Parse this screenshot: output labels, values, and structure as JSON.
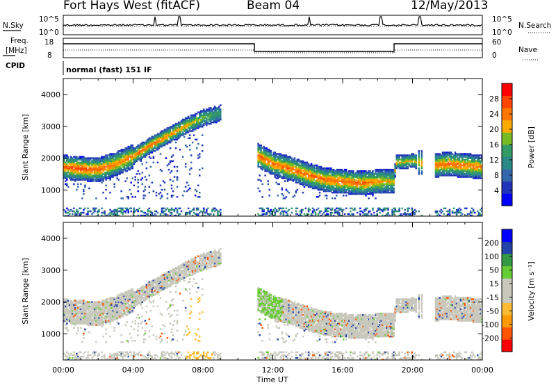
{
  "header": {
    "station": "Fort Hays West (fitACF)",
    "beam": "Beam 04",
    "date": "12/May/2013"
  },
  "strips": {
    "nsky_label": "N.Sky",
    "nsky_ticks": [
      "10^5",
      "10^0"
    ],
    "nsearch_label": "N.Search",
    "nsearch_ticks": [
      "10^5",
      "10^0"
    ],
    "freq_label_1": "Freq.",
    "freq_label_2": "[MHz]",
    "freq_ticks": [
      "18",
      "8"
    ],
    "nave_label": "Nave",
    "nave_ticks": [
      "60",
      "0"
    ],
    "cpid_label": "CPID",
    "cpid_text": "normal (fast) 151 IF"
  },
  "colors": {
    "power": [
      "#0000ff",
      "#2233bb",
      "#3366aa",
      "#2a8a88",
      "#339966",
      "#77bb22",
      "#ffaa00",
      "#ff7700",
      "#ff4400",
      "#ff0000"
    ],
    "velocity": [
      "#ff0000",
      "#ff5500",
      "#ff9900",
      "#ffbb33",
      "#c8c8bc",
      "#c8c8bc",
      "#66cc33",
      "#339944",
      "#2244aa",
      "#0000ff"
    ]
  },
  "chart_data": [
    {
      "type": "heatmap",
      "name": "power",
      "ylabel": "Slant Range [km]",
      "ylim": [
        180,
        4500
      ],
      "yticks": [
        "1000",
        "2000",
        "3000",
        "4000"
      ],
      "colorbar_label": "Power [dB]",
      "colorbar_ticks": [
        "4",
        "8",
        "12",
        "16",
        "20",
        "24",
        "28"
      ],
      "colorbar_range": [
        0,
        32
      ],
      "echo_band": {
        "time_h": [
          0,
          1,
          2,
          3,
          4,
          5,
          6,
          7,
          8,
          9,
          10.5,
          11,
          12,
          13,
          14,
          15,
          16,
          17,
          18,
          18.9,
          19,
          20,
          21,
          22,
          23,
          24
        ],
        "center_km": [
          1700,
          1650,
          1620,
          1800,
          2050,
          2400,
          2700,
          3000,
          3250,
          3400,
          null,
          2100,
          1800,
          1650,
          1450,
          1300,
          1250,
          1200,
          1250,
          1250,
          1850,
          1900,
          1750,
          1800,
          1750,
          1700
        ],
        "peak_db": [
          26,
          28,
          26,
          24,
          25,
          26,
          24,
          22,
          18,
          14,
          null,
          26,
          25,
          26,
          26,
          25,
          26,
          26,
          24,
          20,
          22,
          20,
          24,
          26,
          25,
          24
        ]
      }
    },
    {
      "type": "heatmap",
      "name": "velocity",
      "ylabel": "Slant Range [km]",
      "xlabel": "Time UT",
      "ylim": [
        180,
        4500
      ],
      "yticks": [
        "1000",
        "2000",
        "3000",
        "4000"
      ],
      "xticks": [
        "00:00",
        "04:00",
        "08:00",
        "12:00",
        "16:00",
        "20:00",
        "00:00"
      ],
      "xlim": [
        0,
        24
      ],
      "colorbar_label": "Velocity [m s⁻¹]",
      "colorbar_ticks": [
        "-200",
        "-100",
        "-50",
        "-15",
        "15",
        "50",
        "100",
        "200"
      ]
    }
  ]
}
